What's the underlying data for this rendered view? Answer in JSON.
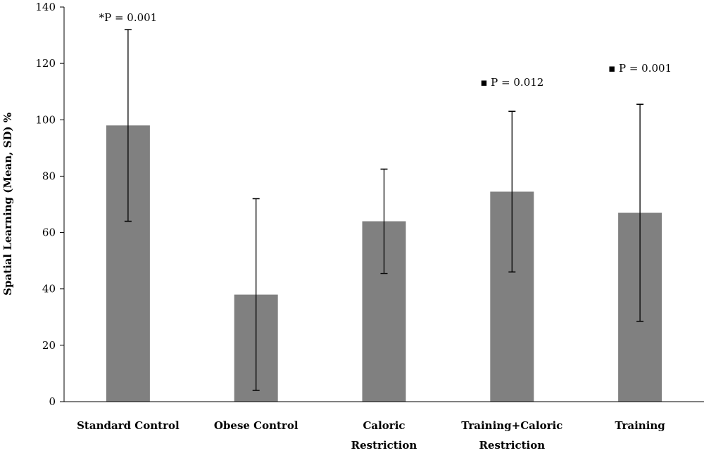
{
  "chart_data": {
    "type": "bar",
    "title": "",
    "xlabel": "",
    "ylabel": "Spatial Learning (Mean, SD) %",
    "ylim": [
      0,
      140
    ],
    "yticks": [
      0,
      20,
      40,
      60,
      80,
      100,
      120,
      140
    ],
    "grid": false,
    "categories": [
      [
        "Standard Control"
      ],
      [
        "Obese Control"
      ],
      [
        "Caloric",
        "Restriction"
      ],
      [
        "Training+Caloric",
        "Restriction"
      ],
      [
        "Training"
      ]
    ],
    "values": [
      98,
      38,
      64,
      74.5,
      67
    ],
    "error": [
      34,
      34,
      18.5,
      28.5,
      38.5
    ],
    "annotations": [
      "*P = 0.001",
      "",
      "",
      "▪ P = 0.012",
      "▪ P = 0.001"
    ],
    "annotation_y": [
      138,
      null,
      null,
      115,
      120
    ],
    "colors": {
      "bar": "#808080",
      "axis": "#000000",
      "error": "#000000"
    }
  }
}
